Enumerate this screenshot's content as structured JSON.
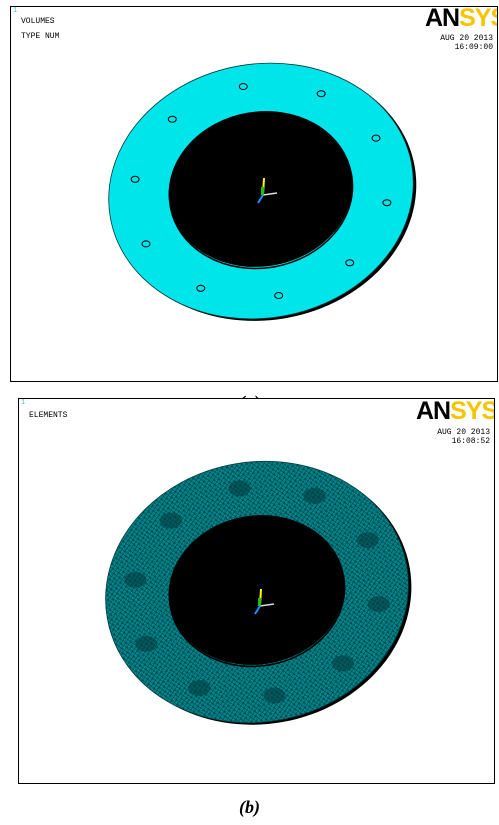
{
  "colors": {
    "ring_fill": "#00e5ea",
    "mesh_fill": "#008f96",
    "mesh_line": "#00393c",
    "edge": "#000000",
    "hole": "#ffffff",
    "logo_black": "#000000",
    "logo_yellow": "#f6c400",
    "axis_x": "#ffffff",
    "axis_y": "#ffff00",
    "axis_z": "#1e90ff"
  },
  "panel_a": {
    "window_number": "1",
    "line1": "VOLUMES",
    "line2": "TYPE NUM",
    "logo_an": "AN",
    "logo_sys": "SYS",
    "date": "AUG 20 2013",
    "time": "16:09:00",
    "axis_y": "Y",
    "axis_x": "X",
    "caption": "(a)"
  },
  "panel_b": {
    "window_number": "1",
    "line1": "ELEMENTS",
    "logo_an": "AN",
    "logo_sys": "SYS",
    "date": "AUG 20 2013",
    "time": "16:08:52",
    "axis_y": "Y",
    "axis_x": "X",
    "caption": "(b)"
  }
}
